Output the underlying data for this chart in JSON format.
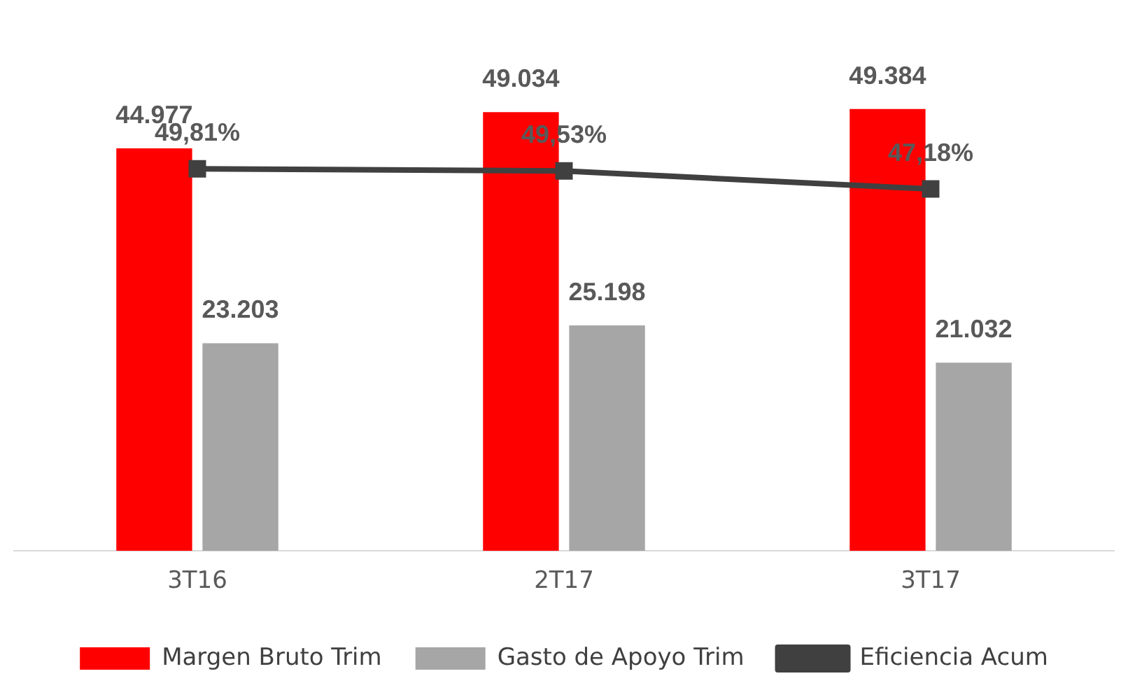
{
  "chart_data": {
    "type": "bar",
    "categories": [
      "3T16",
      "2T17",
      "3T17"
    ],
    "series": [
      {
        "name": "Margen Bruto Trim",
        "color": "#ff0000",
        "values": [
          44977,
          49034,
          49384
        ],
        "value_labels": [
          "44.977",
          "49.034",
          "49.384"
        ]
      },
      {
        "name": "Gasto de Apoyo Trim",
        "color": "#a6a6a6",
        "values": [
          23203,
          25198,
          21032
        ],
        "value_labels": [
          "23.203",
          "25.198",
          "21.032"
        ]
      },
      {
        "name": "Eficiencia Acum",
        "type": "line",
        "axis": "y2",
        "color": "#404040",
        "marker": "square",
        "values": [
          49.81,
          49.53,
          47.18
        ],
        "value_labels": [
          "49,81%",
          "49,53%",
          "47,18%"
        ]
      }
    ],
    "tick_labels": "x",
    "grid": false,
    "legend": "bottom"
  }
}
